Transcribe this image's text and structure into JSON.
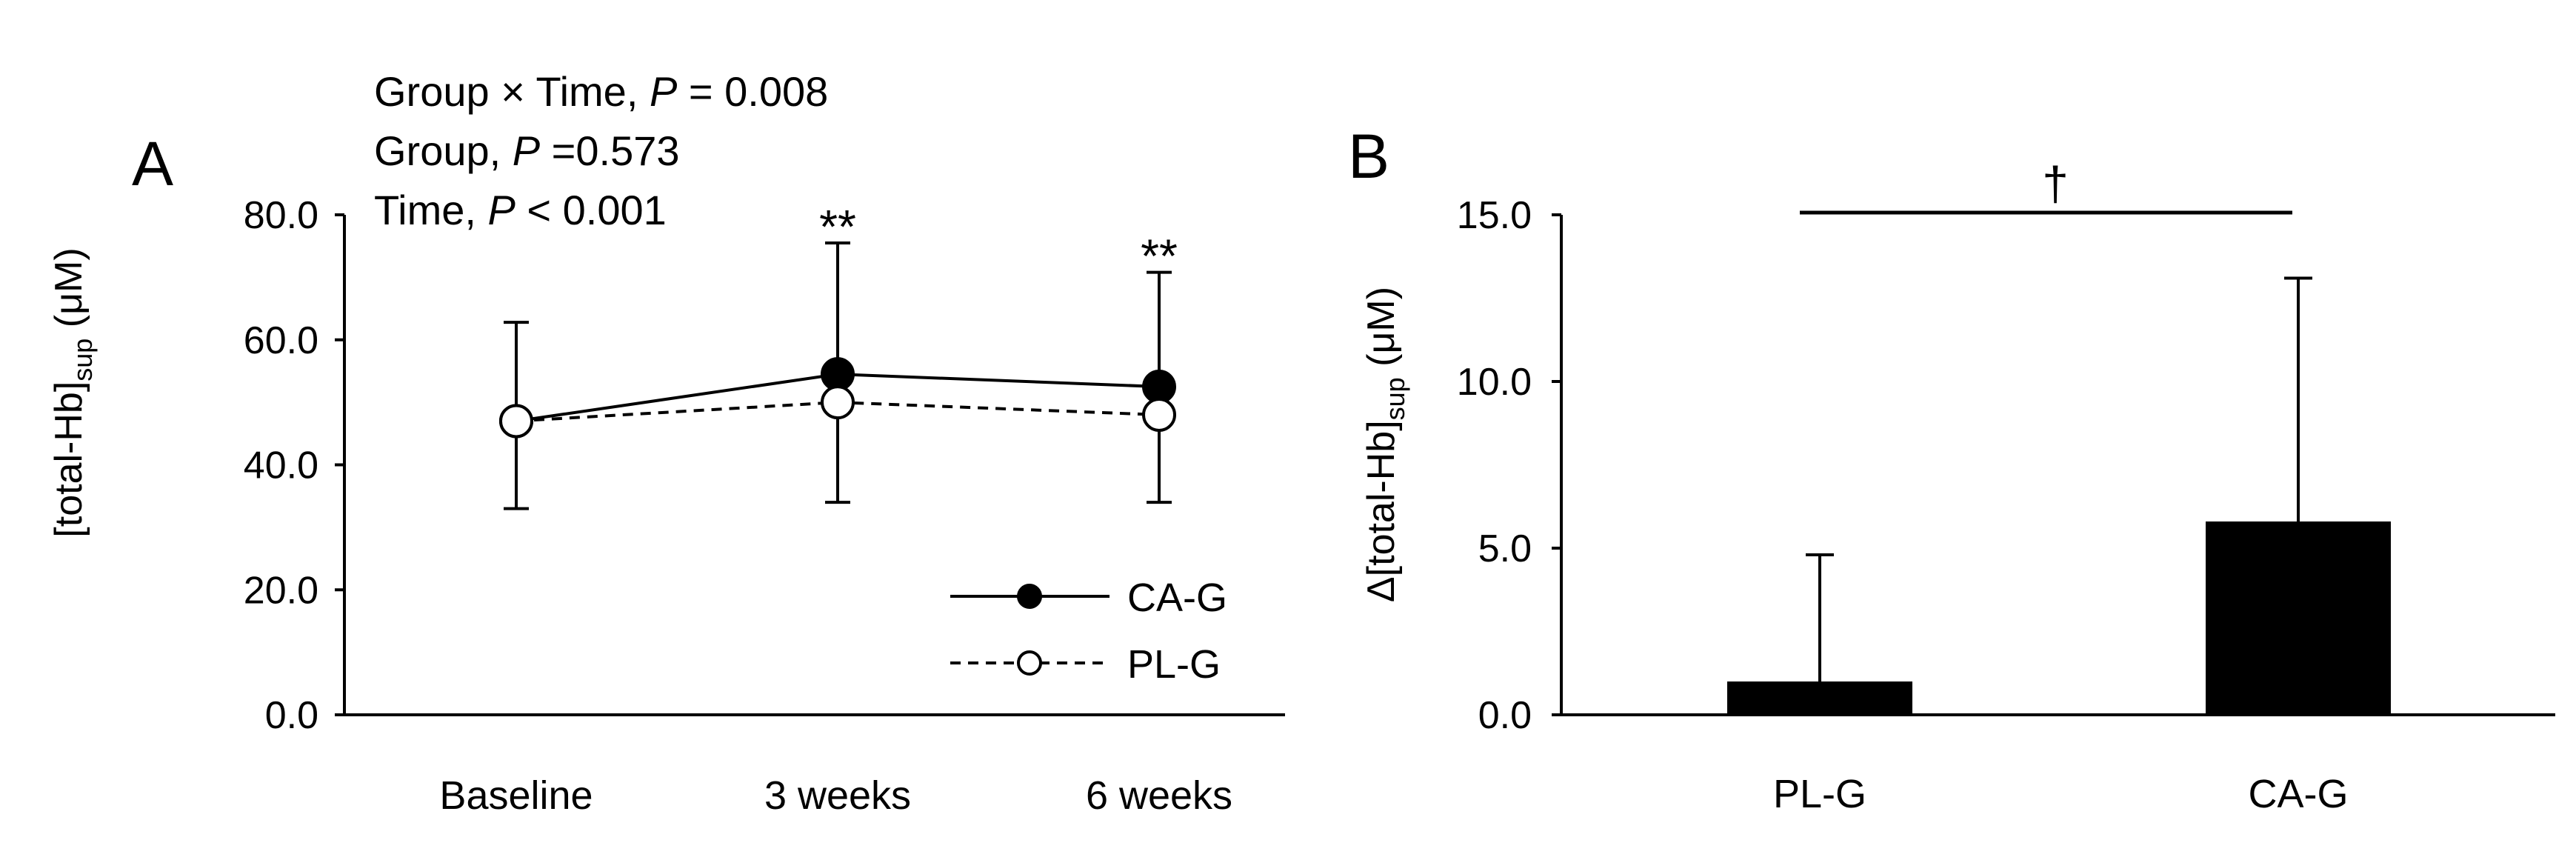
{
  "chart_data": [
    {
      "panel_label": "A",
      "type": "line",
      "categories": [
        "Baseline",
        "3 weeks",
        "6 weeks"
      ],
      "series": [
        {
          "name": "CA-G",
          "marker": "filled-circle",
          "line": "solid",
          "values": [
            47.0,
            54.5,
            52.5
          ],
          "error_upper": [
            62.8,
            75.5,
            70.8
          ]
        },
        {
          "name": "PL-G",
          "marker": "open-circle",
          "line": "dashed",
          "values": [
            47.0,
            50.0,
            48.0
          ],
          "error_lower": [
            33.0,
            34.0,
            34.0
          ]
        }
      ],
      "ylabel_main": "[total-Hb]",
      "ylabel_sub": "sup",
      "ylabel_unit": " (μM)",
      "ylim": [
        0,
        80
      ],
      "yticks": [
        "0.0",
        "20.0",
        "40.0",
        "60.0",
        "80.0"
      ],
      "ytick_values": [
        0,
        20,
        40,
        60,
        80
      ],
      "stats": [
        {
          "pre": "Group × Time, ",
          "p": "P",
          "post": " = 0.008"
        },
        {
          "pre": "Group, ",
          "p": "P",
          "post": " =0.573"
        },
        {
          "pre": "Time, ",
          "p": "P",
          "post": " < 0.001"
        }
      ],
      "significance": [
        {
          "category": "3 weeks",
          "label": "**"
        },
        {
          "category": "6 weeks",
          "label": "**"
        }
      ],
      "legend_position": "bottom-right"
    },
    {
      "panel_label": "B",
      "type": "bar",
      "categories": [
        "PL-G",
        "CA-G"
      ],
      "values": [
        1.0,
        5.8
      ],
      "error_upper": [
        4.8,
        13.1
      ],
      "ylabel_prefix": "Δ",
      "ylabel_main": "[total-Hb]",
      "ylabel_sub": "sup",
      "ylabel_unit": " (μM)",
      "ylim": [
        0,
        15
      ],
      "yticks": [
        "0.0",
        "5.0",
        "10.0",
        "15.0"
      ],
      "ytick_values": [
        0,
        5,
        10,
        15
      ],
      "comparison_label": "†",
      "bar_color": "#000000"
    }
  ]
}
